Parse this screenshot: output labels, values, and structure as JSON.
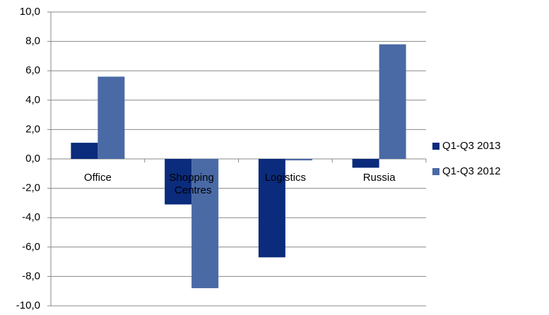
{
  "chart_data": {
    "type": "bar",
    "categories": [
      "Office",
      "Shopping Centres",
      "Logistics",
      "Russia"
    ],
    "series": [
      {
        "name": "Q1-Q3 2013",
        "color": "#0b2b7c",
        "values": [
          1.1,
          -3.1,
          -6.7,
          -0.6
        ]
      },
      {
        "name": "Q1-Q3 2012",
        "color": "#4a6aa6",
        "values": [
          5.6,
          -8.8,
          -0.1,
          7.8
        ]
      }
    ],
    "ylim": [
      -10,
      10
    ],
    "yticks": [
      {
        "value": -10,
        "label": "-10,0"
      },
      {
        "value": -8,
        "label": "-8,0"
      },
      {
        "value": -6,
        "label": "-6,0"
      },
      {
        "value": -4,
        "label": "-4,0"
      },
      {
        "value": -2,
        "label": "-2,0"
      },
      {
        "value": 0,
        "label": "0,0"
      },
      {
        "value": 2,
        "label": "2,0"
      },
      {
        "value": 4,
        "label": "4,0"
      },
      {
        "value": 6,
        "label": "6,0"
      },
      {
        "value": 8,
        "label": "8,0"
      },
      {
        "value": 10,
        "label": "10,0"
      }
    ],
    "grid": true,
    "legend": "right"
  }
}
